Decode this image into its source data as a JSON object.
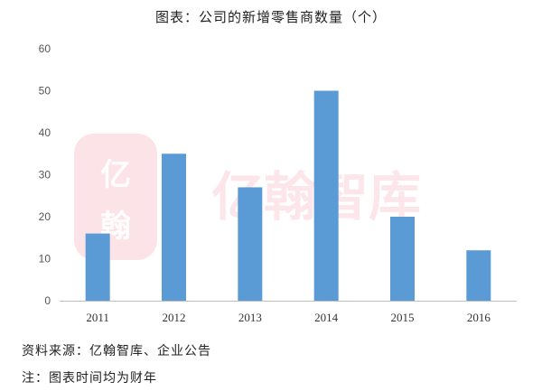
{
  "watermark": {
    "text": "亿翰智库",
    "logo_text": "亿翰",
    "color": "#e63a5a"
  },
  "chart_data": {
    "type": "bar",
    "title": "图表：公司的新增零售商数量（个）",
    "categories": [
      "2011",
      "2012",
      "2013",
      "2014",
      "2015",
      "2016"
    ],
    "values": [
      16,
      35,
      27,
      50,
      20,
      12
    ],
    "ylim": [
      0,
      60
    ],
    "yticks": [
      0,
      10,
      20,
      30,
      40,
      50,
      60
    ],
    "xlabel": "",
    "ylabel": "",
    "grid": false,
    "bar_color": "#5b9bd5",
    "axis_color": "#bfbfbf"
  },
  "footnotes": {
    "source": "资料来源：亿翰智库、企业公告",
    "note": "注：图表时间均为财年"
  }
}
